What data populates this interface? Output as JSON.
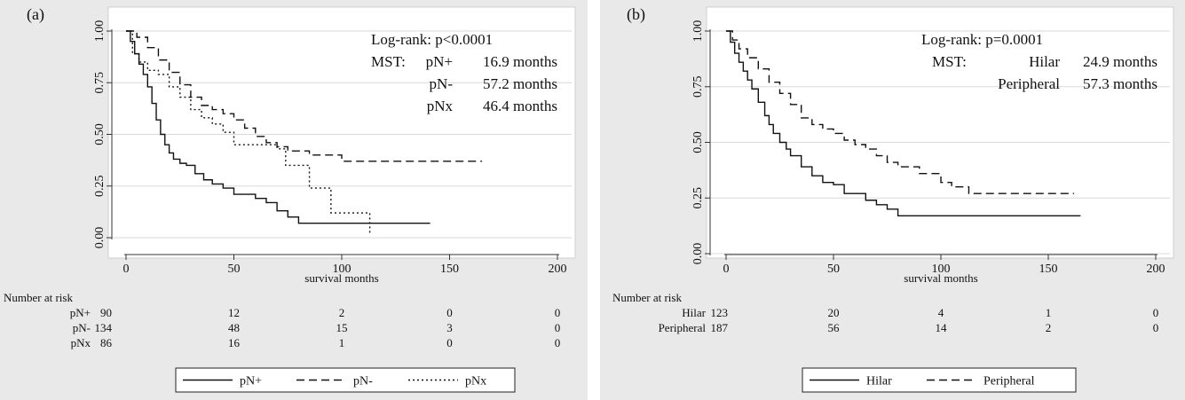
{
  "chart_data": [
    {
      "type": "line",
      "panel_label": "(a)",
      "xlabel": "survival months",
      "ylabel": "",
      "xlim": [
        0,
        200
      ],
      "ylim": [
        0,
        1
      ],
      "x_ticks": [
        "0",
        "50",
        "100",
        "150",
        "200"
      ],
      "y_ticks": [
        "0.00",
        "0.25",
        "0.50",
        "0.75",
        "1.00"
      ],
      "grid": true,
      "annotations": {
        "logrank": "Log-rank: p<0.0001",
        "mst_prefix": "MST:",
        "rows": [
          {
            "group": "pN+",
            "value": "16.9 months"
          },
          {
            "group": "pN-",
            "value": "57.2 months"
          },
          {
            "group": "pNx",
            "value": "46.4 months"
          }
        ]
      },
      "risk_table": {
        "title": "Number at risk",
        "times": [
          0,
          50,
          100,
          150,
          200
        ],
        "rows": [
          {
            "group": "pN+",
            "counts": [
              "90",
              "12",
              "2",
              "0",
              "0"
            ]
          },
          {
            "group": "pN-",
            "counts": [
              "134",
              "48",
              "15",
              "3",
              "0"
            ]
          },
          {
            "group": "pNx",
            "counts": [
              "86",
              "16",
              "1",
              "0",
              "0"
            ]
          }
        ]
      },
      "legend_position": "bottom",
      "series": [
        {
          "name": "pN+",
          "dash": "solid",
          "color": "#111111",
          "x": [
            0,
            2,
            4,
            6,
            8,
            10,
            12,
            14,
            16,
            18,
            20,
            22,
            25,
            28,
            32,
            36,
            40,
            45,
            50,
            60,
            65,
            70,
            75,
            80,
            95,
            141
          ],
          "y": [
            1.0,
            0.95,
            0.89,
            0.84,
            0.79,
            0.73,
            0.65,
            0.57,
            0.5,
            0.45,
            0.41,
            0.38,
            0.36,
            0.35,
            0.31,
            0.28,
            0.26,
            0.24,
            0.21,
            0.19,
            0.17,
            0.13,
            0.1,
            0.07,
            0.07,
            0.07
          ]
        },
        {
          "name": "pN-",
          "dash": "long",
          "color": "#111111",
          "x": [
            0,
            5,
            10,
            15,
            20,
            25,
            30,
            35,
            40,
            45,
            50,
            55,
            60,
            65,
            70,
            75,
            85,
            100,
            165
          ],
          "y": [
            1.0,
            0.97,
            0.92,
            0.86,
            0.8,
            0.74,
            0.68,
            0.64,
            0.62,
            0.6,
            0.57,
            0.53,
            0.49,
            0.46,
            0.44,
            0.42,
            0.4,
            0.37,
            0.37
          ]
        },
        {
          "name": "pNx",
          "dash": "dotted",
          "color": "#111111",
          "x": [
            0,
            3,
            6,
            10,
            15,
            20,
            25,
            30,
            35,
            40,
            45,
            50,
            60,
            70,
            74,
            85,
            95,
            113
          ],
          "y": [
            1.0,
            0.89,
            0.85,
            0.81,
            0.79,
            0.73,
            0.68,
            0.62,
            0.58,
            0.55,
            0.51,
            0.45,
            0.45,
            0.43,
            0.35,
            0.24,
            0.12,
            0.02
          ]
        }
      ]
    },
    {
      "type": "line",
      "panel_label": "(b)",
      "xlabel": "survival months",
      "ylabel": "",
      "xlim": [
        0,
        200
      ],
      "ylim": [
        0,
        1
      ],
      "x_ticks": [
        "0",
        "50",
        "100",
        "150",
        "200"
      ],
      "y_ticks": [
        "0.00",
        "0.25",
        "0.50",
        "0.75",
        "1.00"
      ],
      "grid": true,
      "annotations": {
        "logrank": "Log-rank: p=0.0001",
        "mst_prefix": "MST:",
        "rows": [
          {
            "group": "Hilar",
            "value": "24.9 months"
          },
          {
            "group": "Peripheral",
            "value": "57.3 months"
          }
        ]
      },
      "risk_table": {
        "title": "Number at risk",
        "times": [
          0,
          50,
          100,
          150,
          200
        ],
        "rows": [
          {
            "group": "Hilar",
            "counts": [
              "123",
              "20",
              "4",
              "1",
              "0"
            ]
          },
          {
            "group": "Peripheral",
            "counts": [
              "187",
              "56",
              "14",
              "2",
              "0"
            ]
          }
        ]
      },
      "legend_position": "bottom",
      "series": [
        {
          "name": "Hilar",
          "dash": "solid",
          "color": "#111111",
          "x": [
            0,
            2,
            4,
            6,
            8,
            10,
            12,
            15,
            18,
            20,
            22,
            25,
            28,
            30,
            35,
            40,
            45,
            50,
            55,
            60,
            65,
            70,
            75,
            80,
            165
          ],
          "y": [
            1.0,
            0.95,
            0.9,
            0.86,
            0.82,
            0.78,
            0.74,
            0.68,
            0.62,
            0.58,
            0.54,
            0.5,
            0.47,
            0.44,
            0.39,
            0.35,
            0.32,
            0.31,
            0.27,
            0.27,
            0.24,
            0.22,
            0.2,
            0.17,
            0.17
          ]
        },
        {
          "name": "Peripheral",
          "dash": "long",
          "color": "#111111",
          "x": [
            0,
            3,
            6,
            10,
            15,
            20,
            25,
            30,
            35,
            40,
            45,
            50,
            55,
            60,
            65,
            70,
            75,
            80,
            90,
            100,
            105,
            113,
            162
          ],
          "y": [
            1.0,
            0.96,
            0.92,
            0.88,
            0.83,
            0.77,
            0.72,
            0.67,
            0.61,
            0.58,
            0.56,
            0.54,
            0.51,
            0.49,
            0.47,
            0.44,
            0.41,
            0.39,
            0.36,
            0.32,
            0.3,
            0.27,
            0.27
          ]
        }
      ]
    }
  ]
}
